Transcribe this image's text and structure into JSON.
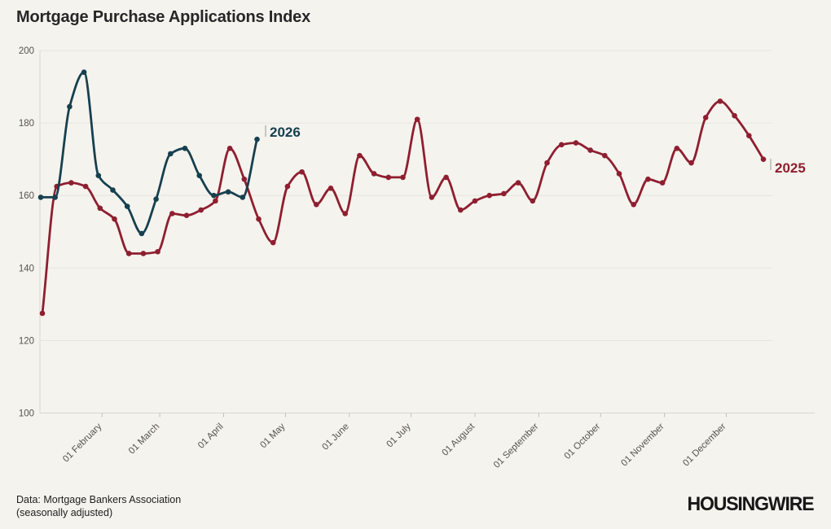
{
  "header": {
    "title": "Mortgage Purchase Applications Index"
  },
  "footer": {
    "source_line_1": "Data: Mortgage Bankers Association",
    "source_line_2": "(seasonally adjusted)",
    "brand": "HOUSINGWIRE"
  },
  "colors": {
    "background": "#f5f3ee",
    "grid": "#e6e4de",
    "axis": "#d9d7d1",
    "tick_mark": "#c2c0ba",
    "tick_text": "#55534e",
    "title_text": "#262626",
    "footer_text": "#21201e",
    "brand_text": "#171717",
    "series_2025": "#8e1f30",
    "series_2026": "#16404f",
    "annotation_tick": "#c6c5c0"
  },
  "chart_data": {
    "type": "line",
    "title": "Mortgage Purchase Applications Index",
    "y_axis": {
      "min": 100,
      "max": 200,
      "ticks": [
        200,
        180,
        160,
        140,
        120,
        100
      ],
      "gridlines": true
    },
    "x_axis": {
      "tick_labels": [
        "01 February",
        "01 March",
        "01 April",
        "01 May",
        "01 June",
        "01 July",
        "01 August",
        "01 September",
        "01 October",
        "01 November",
        "01 December"
      ],
      "cadence": "weekly"
    },
    "legend_position": "line-end-labels",
    "series": [
      {
        "name": "2025",
        "color": "#8e1f30",
        "values": [
          127.5,
          162.5,
          163.5,
          162.5,
          156.5,
          153.5,
          144,
          144,
          144.5,
          155,
          154.5,
          156,
          158.5,
          173,
          164.5,
          153.5,
          147,
          162.5,
          166.5,
          157.5,
          162,
          155,
          171,
          166,
          165,
          165,
          181,
          159.5,
          165,
          156,
          158.5,
          160,
          160.5,
          163.5,
          158.5,
          169,
          174,
          174.5,
          172.5,
          171,
          166,
          157.5,
          164.5,
          163.5,
          173,
          169,
          181.5,
          186,
          182,
          176.5,
          170
        ]
      },
      {
        "name": "2026",
        "color": "#16404f",
        "values": [
          159.5,
          159.5,
          184.5,
          194,
          165.5,
          161.5,
          157,
          149.5,
          159,
          171.5,
          173,
          165.5,
          160,
          161,
          159.5,
          175.5
        ]
      }
    ],
    "end_labels": [
      {
        "text": "2026",
        "series": "2026"
      },
      {
        "text": "2025",
        "series": "2025"
      }
    ]
  }
}
